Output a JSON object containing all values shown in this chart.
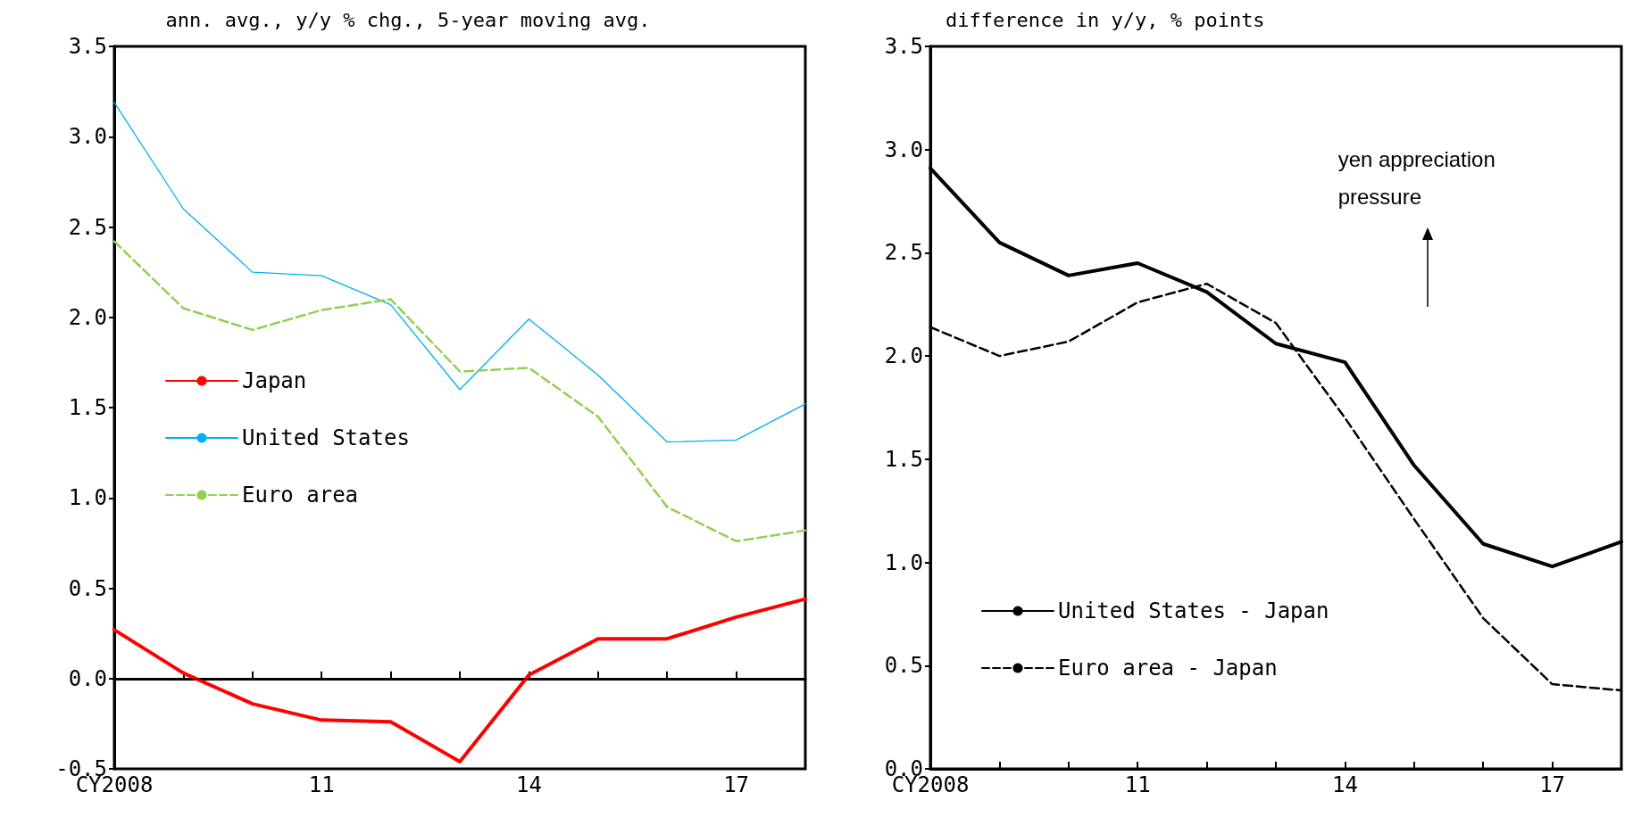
{
  "chart_data": [
    {
      "type": "line",
      "title": "ann. avg., y/y % chg., 5-year moving avg.",
      "categories": [
        "CY2008",
        null,
        null,
        "11",
        null,
        null,
        "14",
        null,
        null,
        "17",
        null
      ],
      "series": [
        {
          "name": "Japan",
          "color": "#ff0000",
          "line_style": "solid",
          "values": [
            0.27,
            0.03,
            -0.14,
            -0.23,
            -0.24,
            -0.46,
            0.02,
            0.22,
            0.22,
            0.34,
            0.44
          ]
        },
        {
          "name": "United States",
          "color": "#00b0f0",
          "line_style": "solid",
          "values": [
            3.19,
            2.6,
            2.25,
            2.23,
            2.07,
            1.6,
            1.99,
            1.68,
            1.31,
            1.32,
            1.52
          ]
        },
        {
          "name": "Euro area",
          "color": "#92d050",
          "line_style": "dashed",
          "values": [
            2.42,
            2.05,
            1.93,
            2.04,
            2.1,
            1.7,
            1.72,
            1.45,
            0.95,
            0.76,
            0.82
          ]
        }
      ],
      "ylim": [
        -0.5,
        3.5
      ],
      "yticks": [
        {
          "value": -0.5,
          "label": "-0.5"
        },
        {
          "value": 0,
          "label": "0.0"
        },
        0.5,
        {
          "value": 1,
          "label": "1.0"
        },
        1.5,
        {
          "value": 2,
          "label": "2.0"
        },
        2.5,
        {
          "value": 3,
          "label": "3.0"
        },
        3.5
      ],
      "ref_lines": [
        {
          "axis": "y",
          "value": 0,
          "color": "#000000"
        }
      ],
      "legend": "center left",
      "grid": false,
      "marker": "none"
    },
    {
      "type": "line",
      "title": "difference in y/y, % points",
      "categories": [
        "CY2008",
        null,
        null,
        "11",
        null,
        null,
        "14",
        null,
        null,
        "17",
        null
      ],
      "series": [
        {
          "name": "United States - Japan",
          "color": "#000000",
          "line_style": "solid",
          "values": [
            2.91,
            2.55,
            2.39,
            2.45,
            2.31,
            2.06,
            1.97,
            1.47,
            1.09,
            0.98,
            1.1
          ]
        },
        {
          "name": "Euro area - Japan",
          "color": "#000000",
          "line_style": "dashed",
          "values": [
            2.14,
            2.0,
            2.07,
            2.26,
            2.35,
            2.16,
            1.7,
            1.21,
            0.73,
            0.41,
            0.38
          ]
        }
      ],
      "ylim": [
        0,
        3.5
      ],
      "yticks": [
        {
          "value": 0,
          "label": "0.0"
        },
        0.5,
        {
          "value": 1,
          "label": "1.0"
        },
        1.5,
        {
          "value": 2,
          "label": "2.0"
        },
        2.5,
        {
          "value": 3,
          "label": "3.0"
        },
        3.5
      ],
      "annotations": [
        "yen appreciation pressure"
      ],
      "legend": "bottom left",
      "grid": false,
      "marker": "none"
    }
  ]
}
